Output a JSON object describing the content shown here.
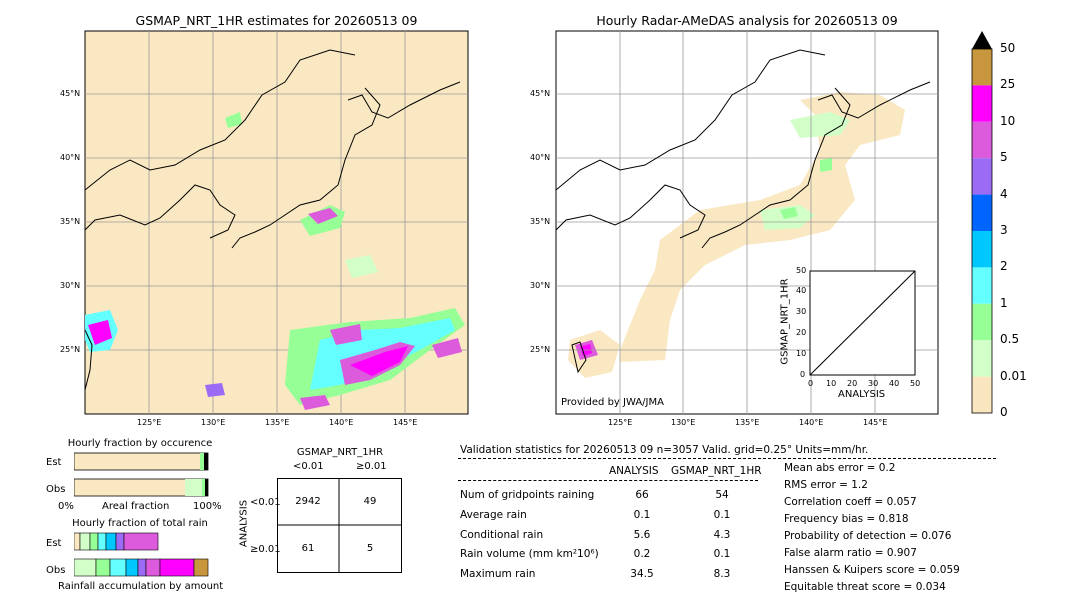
{
  "left_map": {
    "title": "GSMAP_NRT_1HR estimates for 20260513 09"
  },
  "right_map": {
    "title": "Hourly Radar-AMeDAS analysis for 20260513 09",
    "credit": "Provided by JWA/JMA"
  },
  "map_ticks": {
    "lon": [
      "125°E",
      "130°E",
      "135°E",
      "140°E",
      "145°E"
    ],
    "lat": [
      "45°N",
      "40°N",
      "35°N",
      "30°N",
      "25°N"
    ]
  },
  "colorbar": {
    "labels": [
      "50",
      "25",
      "10",
      "5",
      "4",
      "3",
      "2",
      "1",
      "0.5",
      "0.01",
      "0"
    ],
    "colors": [
      "#c8963c",
      "#ff00ff",
      "#dc5adc",
      "#9b6bf5",
      "#0064ff",
      "#00c8ff",
      "#64ffff",
      "#96ff96",
      "#d2ffc8",
      "#fae6be"
    ]
  },
  "scatter": {
    "xlabel": "ANALYSIS",
    "ylabel": "GSMAP_NRT_1HR",
    "ticks": [
      "0",
      "10",
      "20",
      "30",
      "40",
      "50"
    ]
  },
  "fraction_occurrence": {
    "title": "Hourly fraction by occurence",
    "rows": [
      "Est",
      "Obs"
    ],
    "xlabel": "Areal fraction",
    "x0": "0%",
    "x1": "100%"
  },
  "fraction_total": {
    "title": "Hourly fraction of total rain",
    "rows": [
      "Est",
      "Obs"
    ],
    "xlabel": "Rainfall accumulation by amount"
  },
  "contingency": {
    "title": "GSMAP_NRT_1HR",
    "col_labels": [
      "<0.01",
      "≥0.01"
    ],
    "row_axis": "ANALYSIS",
    "row_labels": [
      "<0.01",
      "≥0.01"
    ],
    "cells": [
      [
        "2942",
        "49"
      ],
      [
        "61",
        "5"
      ]
    ]
  },
  "validation": {
    "header": "Validation statistics for 20260513 09  n=3057 Valid. grid=0.25° Units=mm/hr.",
    "col_analysis": "ANALYSIS",
    "col_gsmap": "GSMAP_NRT_1HR",
    "rows": [
      {
        "label": "Num of gridpoints raining",
        "a": "66",
        "g": "54"
      },
      {
        "label": "Average rain",
        "a": "0.1",
        "g": "0.1"
      },
      {
        "label": "Conditional rain",
        "a": "5.6",
        "g": "4.3"
      },
      {
        "label": "Rain volume (mm km²10⁶)",
        "a": "0.2",
        "g": "0.1"
      },
      {
        "label": "Maximum rain",
        "a": "34.5",
        "g": "8.3"
      }
    ],
    "scores": [
      "Mean abs error =    0.2",
      "RMS error =    1.2",
      "Correlation coeff =  0.057",
      "Frequency bias =  0.818",
      "Probability of detection =  0.076",
      "False alarm ratio =  0.907",
      "Hanssen & Kuipers score =  0.059",
      "Equitable threat score =  0.034"
    ]
  },
  "chart_data": [
    {
      "type": "heatmap",
      "title": "GSMAP_NRT_1HR estimates for 20260513 09",
      "x_ticks": [
        "125°E",
        "130°E",
        "135°E",
        "140°E",
        "145°E"
      ],
      "y_ticks": [
        "45°N",
        "40°N",
        "35°N",
        "30°N",
        "25°N"
      ]
    },
    {
      "type": "heatmap",
      "title": "Hourly Radar-AMeDAS analysis for 20260513 09",
      "x_ticks": [
        "125°E",
        "130°E",
        "135°E",
        "140°E",
        "145°E"
      ],
      "y_ticks": [
        "45°N",
        "40°N",
        "35°N",
        "30°N",
        "25°N"
      ]
    },
    {
      "type": "scatter",
      "xlabel": "ANALYSIS",
      "ylabel": "GSMAP_NRT_1HR",
      "xlim": [
        0,
        50
      ],
      "ylim": [
        0,
        50
      ]
    },
    {
      "type": "table",
      "title": "GSMAP_NRT_1HR",
      "columns": [
        "<0.01",
        "≥0.01"
      ],
      "rows": [
        "<0.01",
        "≥0.01"
      ],
      "values": [
        [
          2942,
          49
        ],
        [
          61,
          5
        ]
      ]
    }
  ]
}
